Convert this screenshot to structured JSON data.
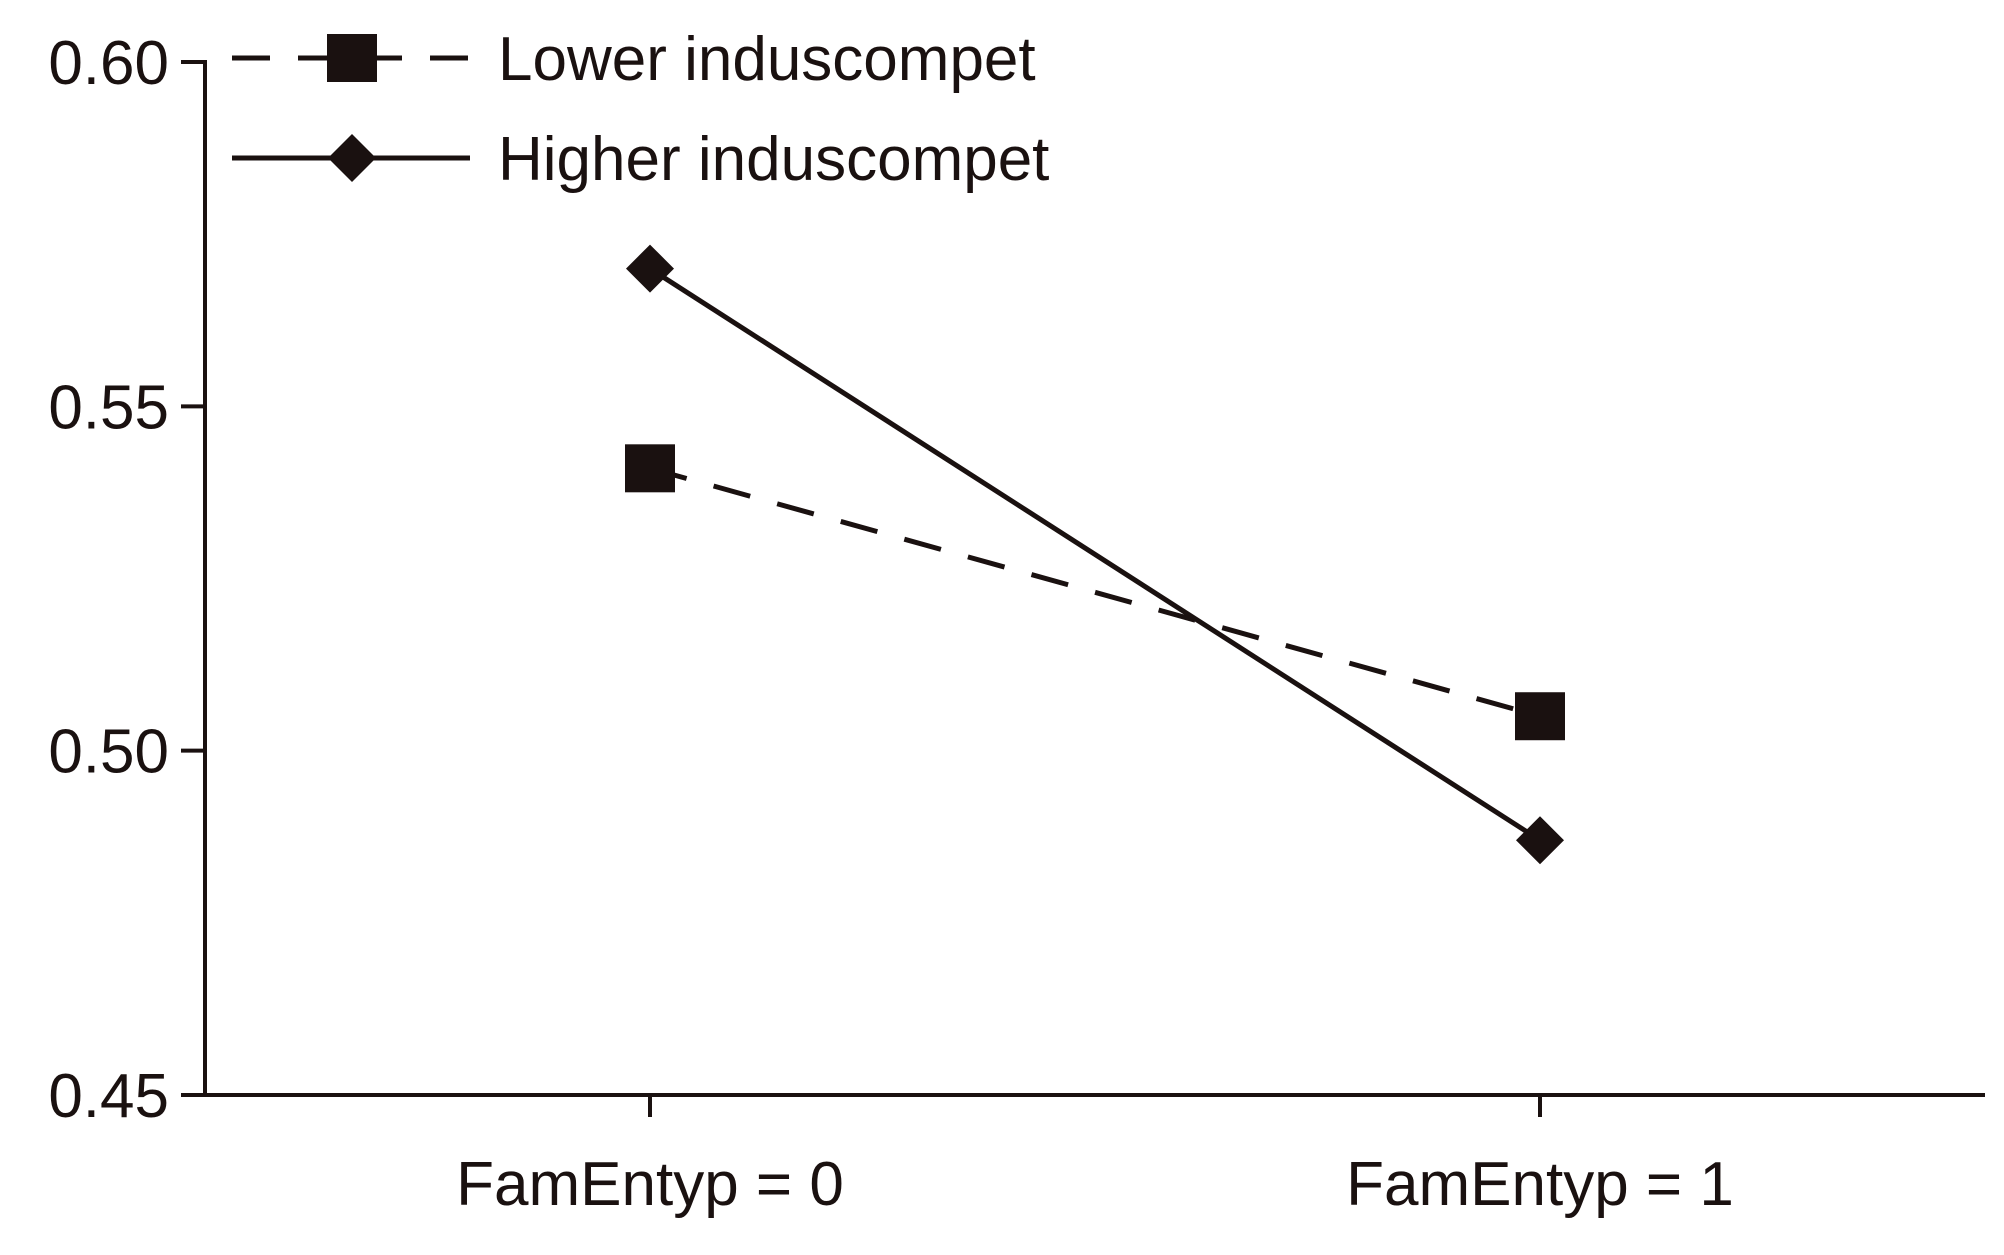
{
  "chart_data": {
    "type": "line",
    "title": "",
    "xlabel": "",
    "ylabel": "",
    "categories": [
      "FamEntyp = 0",
      "FamEntyp = 1"
    ],
    "ylim": [
      0.45,
      0.6
    ],
    "y_ticks": [
      "0.45",
      "0.50",
      "0.55",
      "0.60"
    ],
    "grid": false,
    "legend_position": "top-left",
    "series": [
      {
        "name": "Lower induscompet",
        "values": [
          0.541,
          0.505
        ],
        "line_style": "dashed",
        "marker": "square",
        "color": "#1a1110"
      },
      {
        "name": "Higher induscompet",
        "values": [
          0.57,
          0.487
        ],
        "line_style": "solid",
        "marker": "diamond",
        "color": "#1a1110"
      }
    ]
  }
}
